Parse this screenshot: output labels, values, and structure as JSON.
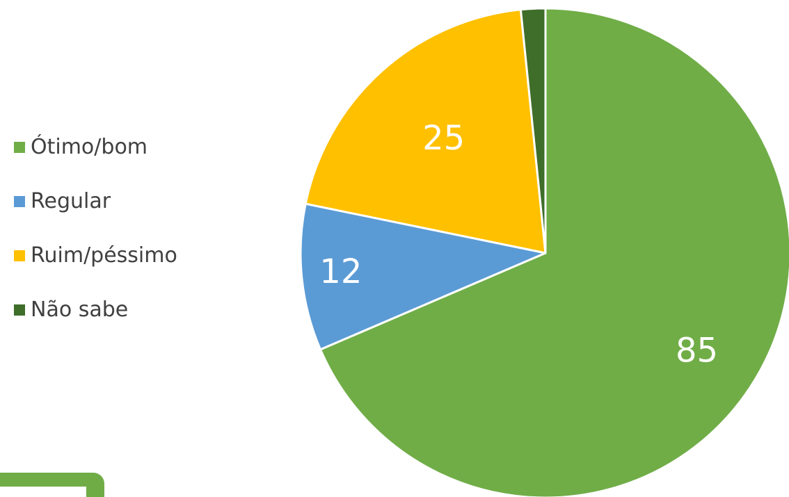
{
  "chart_data": {
    "type": "pie",
    "categories": [
      "Ótimo/bom",
      "Regular",
      "Ruim/péssimo",
      "Não sabe"
    ],
    "values": [
      85,
      12,
      25,
      2
    ],
    "data_labels": [
      "85",
      "12",
      "25",
      ""
    ],
    "colors": [
      "#70ad47",
      "#5b9bd5",
      "#ffc000",
      "#3f6d2a"
    ],
    "legend_position": "left",
    "start_angle_deg": 0,
    "direction": "clockwise"
  },
  "legend": {
    "items": [
      {
        "label": "Ótimo/bom",
        "color": "#70ad47"
      },
      {
        "label": "Regular",
        "color": "#5b9bd5"
      },
      {
        "label": "Ruim/péssimo",
        "color": "#ffc000"
      },
      {
        "label": "Não sabe",
        "color": "#3f6d2a"
      }
    ]
  },
  "decor": {
    "corner_tab_color": "#6fac46"
  }
}
